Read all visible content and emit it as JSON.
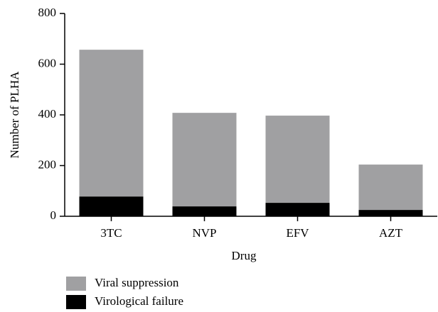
{
  "chart_data": {
    "type": "stacked_bar",
    "categories": [
      "3TC",
      "NVP",
      "EFV",
      "AZT"
    ],
    "series": [
      {
        "name": "Viral suppression",
        "color": "#a0a0a2",
        "values": [
          579,
          369,
          344,
          179
        ]
      },
      {
        "name": "Virological failure",
        "color": "#000000",
        "values": [
          78,
          39,
          53,
          25
        ]
      }
    ],
    "stack_order": [
      "Virological failure",
      "Viral suppression"
    ],
    "x_label": "Drug",
    "y_label": "Number of PLHA",
    "ylim": [
      0,
      800
    ],
    "yticks": [
      0,
      200,
      400,
      600,
      800
    ]
  }
}
